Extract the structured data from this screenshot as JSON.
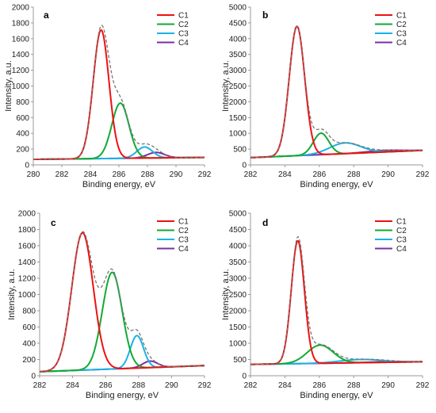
{
  "colors": {
    "C1": "#ee1111",
    "C2": "#11aa33",
    "C3": "#1ab3e6",
    "C4": "#7a2fa0",
    "envelope": "#777777"
  },
  "chart_data": [
    {
      "type": "line",
      "panel": "a",
      "xlabel": "Binding energy, eV",
      "ylabel": "Intensity, a.u.",
      "xlim": [
        280,
        292
      ],
      "ylim": [
        0,
        2000
      ],
      "xticks": [
        280,
        282,
        284,
        286,
        288,
        290,
        292
      ],
      "yticks": [
        0,
        200,
        400,
        600,
        800,
        1000,
        1200,
        1400,
        1600,
        1800,
        2000
      ],
      "grid": false,
      "legend": "top-right",
      "baseline": [
        [
          280,
          70
        ],
        [
          292,
          95
        ]
      ],
      "series": [
        {
          "name": "C1",
          "center": 284.75,
          "height": 1630,
          "width": 0.55
        },
        {
          "name": "C2",
          "center": 286.1,
          "height": 700,
          "width": 0.6
        },
        {
          "name": "C3",
          "center": 287.8,
          "height": 140,
          "width": 0.55
        },
        {
          "name": "C4",
          "center": 288.6,
          "height": 70,
          "width": 0.6
        }
      ]
    },
    {
      "type": "line",
      "panel": "b",
      "xlabel": "Binding energy, eV",
      "ylabel": "Intensity, a.u.",
      "xlim": [
        282,
        292
      ],
      "ylim": [
        0,
        5000
      ],
      "xticks": [
        282,
        284,
        286,
        288,
        290,
        292
      ],
      "yticks": [
        0,
        500,
        1000,
        1500,
        2000,
        2500,
        3000,
        3500,
        4000,
        4500,
        5000
      ],
      "grid": false,
      "legend": "top-right",
      "baseline": [
        [
          282,
          230
        ],
        [
          292,
          460
        ]
      ],
      "series": [
        {
          "name": "C1",
          "center": 284.7,
          "height": 4100,
          "width": 0.45
        },
        {
          "name": "C2",
          "center": 286.1,
          "height": 680,
          "width": 0.45
        },
        {
          "name": "C3",
          "center": 287.5,
          "height": 340,
          "width": 0.9
        },
        {
          "name": "C4",
          "center": 289.8,
          "height": 50,
          "width": 1.0
        }
      ]
    },
    {
      "type": "line",
      "panel": "c",
      "xlabel": "Binding energy, eV",
      "ylabel": "Intensity, a.u.",
      "xlim": [
        282,
        292
      ],
      "ylim": [
        0,
        2000
      ],
      "xticks": [
        282,
        284,
        286,
        288,
        290,
        292
      ],
      "yticks": [
        0,
        200,
        400,
        600,
        800,
        1000,
        1200,
        1400,
        1600,
        1800,
        2000
      ],
      "grid": false,
      "legend": "top-right",
      "baseline": [
        [
          282,
          50
        ],
        [
          292,
          125
        ]
      ],
      "series": [
        {
          "name": "C1",
          "center": 284.6,
          "height": 1690,
          "width": 0.65
        },
        {
          "name": "C2",
          "center": 286.4,
          "height": 1190,
          "width": 0.6
        },
        {
          "name": "C3",
          "center": 287.9,
          "height": 400,
          "width": 0.4
        },
        {
          "name": "C4",
          "center": 288.7,
          "height": 80,
          "width": 0.45
        }
      ]
    },
    {
      "type": "line",
      "panel": "d",
      "xlabel": "Binding energy, eV",
      "ylabel": "Intensity, a.u.",
      "xlim": [
        282,
        292
      ],
      "ylim": [
        0,
        5000
      ],
      "xticks": [
        282,
        284,
        286,
        288,
        290,
        292
      ],
      "yticks": [
        0,
        500,
        1000,
        1500,
        2000,
        2500,
        3000,
        3500,
        4000,
        4500,
        5000
      ],
      "grid": false,
      "legend": "top-right",
      "baseline": [
        [
          282,
          350
        ],
        [
          292,
          430
        ]
      ],
      "series": [
        {
          "name": "C1",
          "center": 284.75,
          "height": 3780,
          "width": 0.38
        },
        {
          "name": "C2",
          "center": 286.05,
          "height": 560,
          "width": 0.75
        },
        {
          "name": "C3",
          "center": 288.4,
          "height": 100,
          "width": 1.2
        },
        {
          "name": "C4",
          "center": 290.0,
          "height": 20,
          "width": 1.0
        }
      ]
    }
  ]
}
